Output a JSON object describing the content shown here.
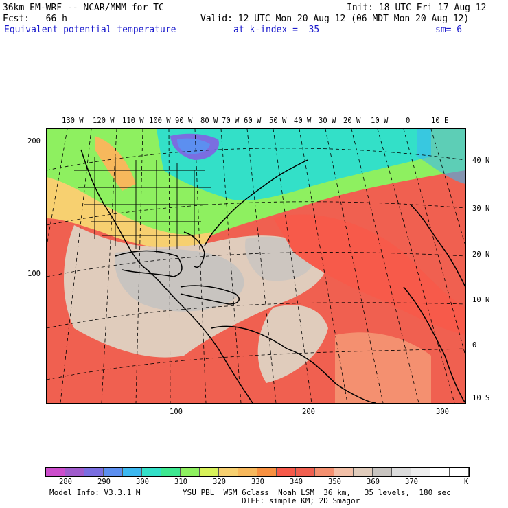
{
  "header": {
    "model": "36km EM-WRF -- NCAR/MMM for TC",
    "init": "Init: 18 UTC Fri 17 Aug 12",
    "fcst": "Fcst:   66 h",
    "valid": "Valid: 12 UTC Mon 20 Aug 12 (06 MDT Mon 20 Aug 12)",
    "field": "Equivalent potential temperature",
    "kindex": "at k-index =  35",
    "sm": "sm= 6"
  },
  "map": {
    "lon_labels": [
      "130 W",
      "120 W",
      "110 W",
      "100 W",
      "90 W",
      "80 W",
      "70 W",
      "60 W",
      "50 W",
      "40 W",
      "30 W",
      "20 W",
      "10 W",
      "0",
      "10 E"
    ],
    "lat_labels": [
      "40 N",
      "30 N",
      "20 N",
      "10 N",
      "0",
      "10 S"
    ],
    "grid_x_labels": [
      "100",
      "200",
      "300"
    ],
    "grid_y_labels": [
      "200",
      "100"
    ]
  },
  "colorbar": {
    "colors": [
      "#cc4dcc",
      "#a05ccc",
      "#7a6ee0",
      "#5c8ff0",
      "#3cb8f0",
      "#33e0c8",
      "#3de890",
      "#8ef060",
      "#d8f25a",
      "#f7d070",
      "#f7b85c",
      "#f79040",
      "#f75a4a",
      "#f06050",
      "#f49070",
      "#f2c0a8",
      "#e0ccbc",
      "#c8c4c0",
      "#dcdcdc",
      "#eeeeee",
      "#ffffff",
      "#ffffff"
    ],
    "labels": [
      "280",
      "290",
      "300",
      "310",
      "320",
      "330",
      "340",
      "350",
      "360",
      "370"
    ],
    "unit": "K"
  },
  "footer": {
    "line1_left": "Model Info: V3.3.1 M",
    "line1_right": "YSU PBL  WSM 6class  Noah LSM  36 km,   35 levels,  180 sec",
    "line2": "DIFF: simple KM; 2D Smagor"
  }
}
